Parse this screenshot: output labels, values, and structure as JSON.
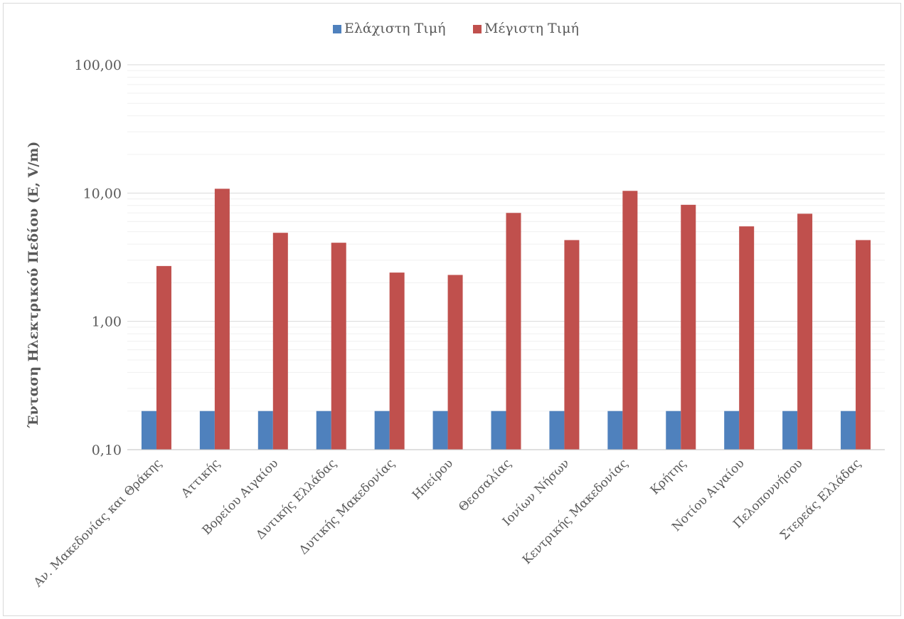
{
  "chart_data": {
    "type": "bar",
    "title": "",
    "xlabel": "",
    "ylabel": "Ένταση Ηλεκτρικού Πεδίου (E, V/m)",
    "yscale": "log",
    "ylim": [
      0.1,
      100
    ],
    "yticks": [
      0.1,
      1,
      10,
      100
    ],
    "ytick_labels": [
      "0,10",
      "1,00",
      "10,00",
      "100,00"
    ],
    "grid": true,
    "legend_position": "top-center",
    "categories": [
      "Αν. Μακεδονίας και Θράκης",
      "Αττικής",
      "Βορείου Αιγαίου",
      "Δυτικής Ελλάδας",
      "Δυτικής Μακεδονίας",
      "Ηπείρου",
      "Θεσσαλίας",
      "Ιονίων Νήσων",
      "Κεντρικής Μακεδονίας",
      "Κρήτης",
      "Νοτίου Αιγαίου",
      "Πελοποννήσου",
      "Στερεάς Ελλάδας"
    ],
    "series": [
      {
        "name": "Ελάχιστη Τιμή",
        "color": "#4f81bd",
        "values": [
          0.2,
          0.2,
          0.2,
          0.2,
          0.2,
          0.2,
          0.2,
          0.2,
          0.2,
          0.2,
          0.2,
          0.2,
          0.2
        ]
      },
      {
        "name": "Μέγιστη Τιμή",
        "color": "#c0504d",
        "values": [
          2.7,
          10.8,
          4.9,
          4.1,
          2.4,
          2.3,
          7.0,
          4.3,
          10.4,
          8.1,
          5.5,
          6.9,
          4.3
        ]
      }
    ]
  }
}
